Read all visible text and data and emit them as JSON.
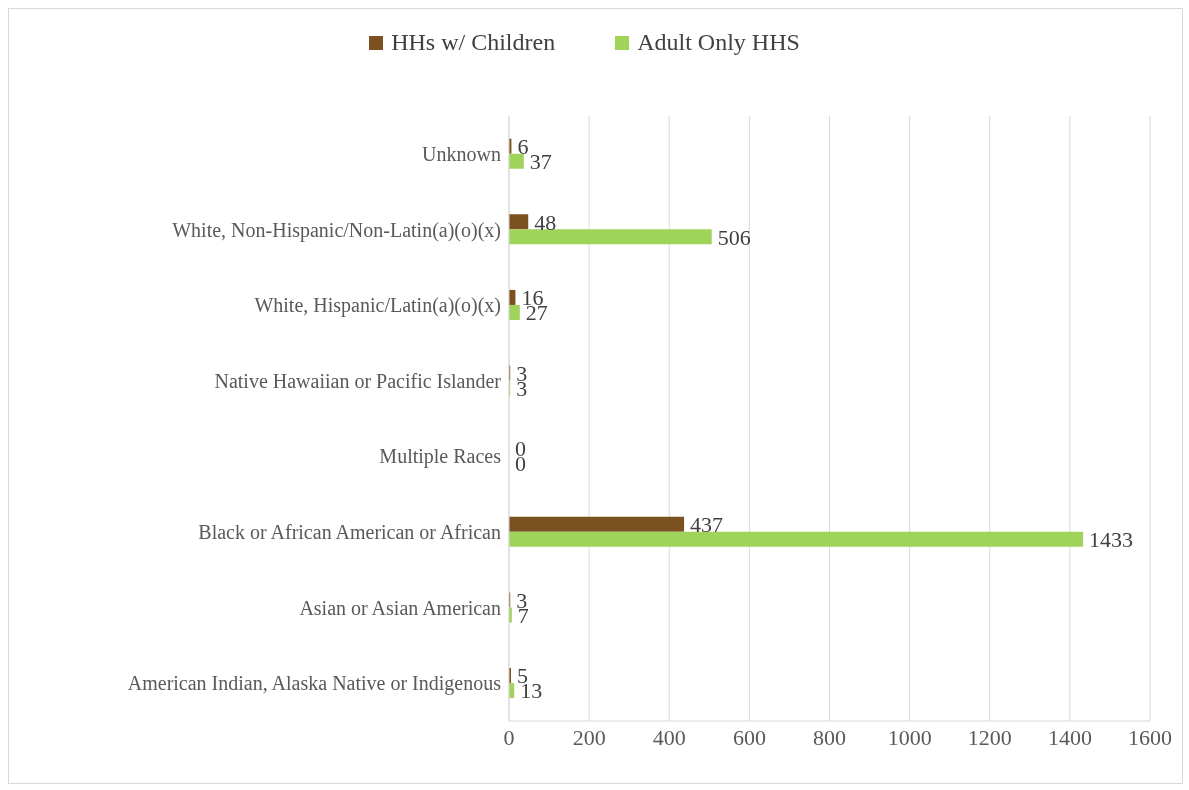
{
  "chart_data": {
    "type": "bar",
    "orientation": "horizontal",
    "categories": [
      "Unknown",
      "White, Non-Hispanic/Non-Latin(a)(o)(x)",
      "White, Hispanic/Latin(a)(o)(x)",
      "Native Hawaiian or Pacific Islander",
      "Multiple Races",
      "Black or African American or African",
      "Asian or Asian American",
      "American Indian, Alaska Native or Indigenous"
    ],
    "series": [
      {
        "name": "HHs w/ Children",
        "color": "#7b5120",
        "values": [
          6,
          48,
          16,
          3,
          0,
          437,
          3,
          5
        ]
      },
      {
        "name": "Adult Only HHS",
        "color": "#9fd35a",
        "values": [
          37,
          506,
          27,
          3,
          0,
          1433,
          7,
          13
        ]
      }
    ],
    "xlim": [
      0,
      1600
    ],
    "xticks": [
      0,
      200,
      400,
      600,
      800,
      1000,
      1200,
      1400,
      1600
    ],
    "grid": "x",
    "legend": "top",
    "data_labels": true
  }
}
